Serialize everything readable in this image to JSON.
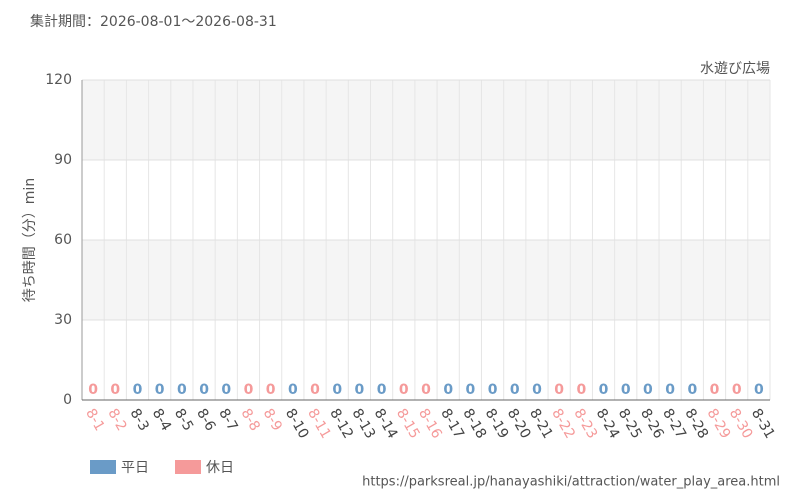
{
  "chart_data": {
    "type": "bar",
    "title": "集計期間：2026-08-01～2026-08-31",
    "subtitle": "水遊び広場",
    "y_label": "待ち時間（分）min",
    "source": "https://parksreal.jp/hanayashiki/attraction/water_play_area.html",
    "categories": [
      "8-1",
      "8-2",
      "8-3",
      "8-4",
      "8-5",
      "8-6",
      "8-7",
      "8-8",
      "8-9",
      "8-10",
      "8-11",
      "8-12",
      "8-13",
      "8-14",
      "8-15",
      "8-16",
      "8-17",
      "8-18",
      "8-19",
      "8-20",
      "8-21",
      "8-22",
      "8-23",
      "8-24",
      "8-25",
      "8-26",
      "8-27",
      "8-28",
      "8-29",
      "8-30",
      "8-31"
    ],
    "series": [
      {
        "name": "平日",
        "color": "#6a9bc7",
        "values": [
          null,
          null,
          0,
          0,
          0,
          0,
          0,
          null,
          null,
          0,
          null,
          0,
          0,
          0,
          null,
          null,
          0,
          0,
          0,
          0,
          0,
          null,
          null,
          0,
          0,
          0,
          0,
          0,
          null,
          null,
          0
        ]
      },
      {
        "name": "休日",
        "color": "#f59a9a",
        "values": [
          0,
          0,
          null,
          null,
          null,
          null,
          null,
          0,
          0,
          null,
          0,
          null,
          null,
          null,
          0,
          0,
          null,
          null,
          null,
          null,
          null,
          0,
          0,
          null,
          null,
          null,
          null,
          null,
          0,
          0,
          null
        ]
      }
    ],
    "ylim": [
      0,
      120
    ],
    "yticks": [
      0,
      30,
      60,
      90,
      120
    ],
    "grid": true
  }
}
